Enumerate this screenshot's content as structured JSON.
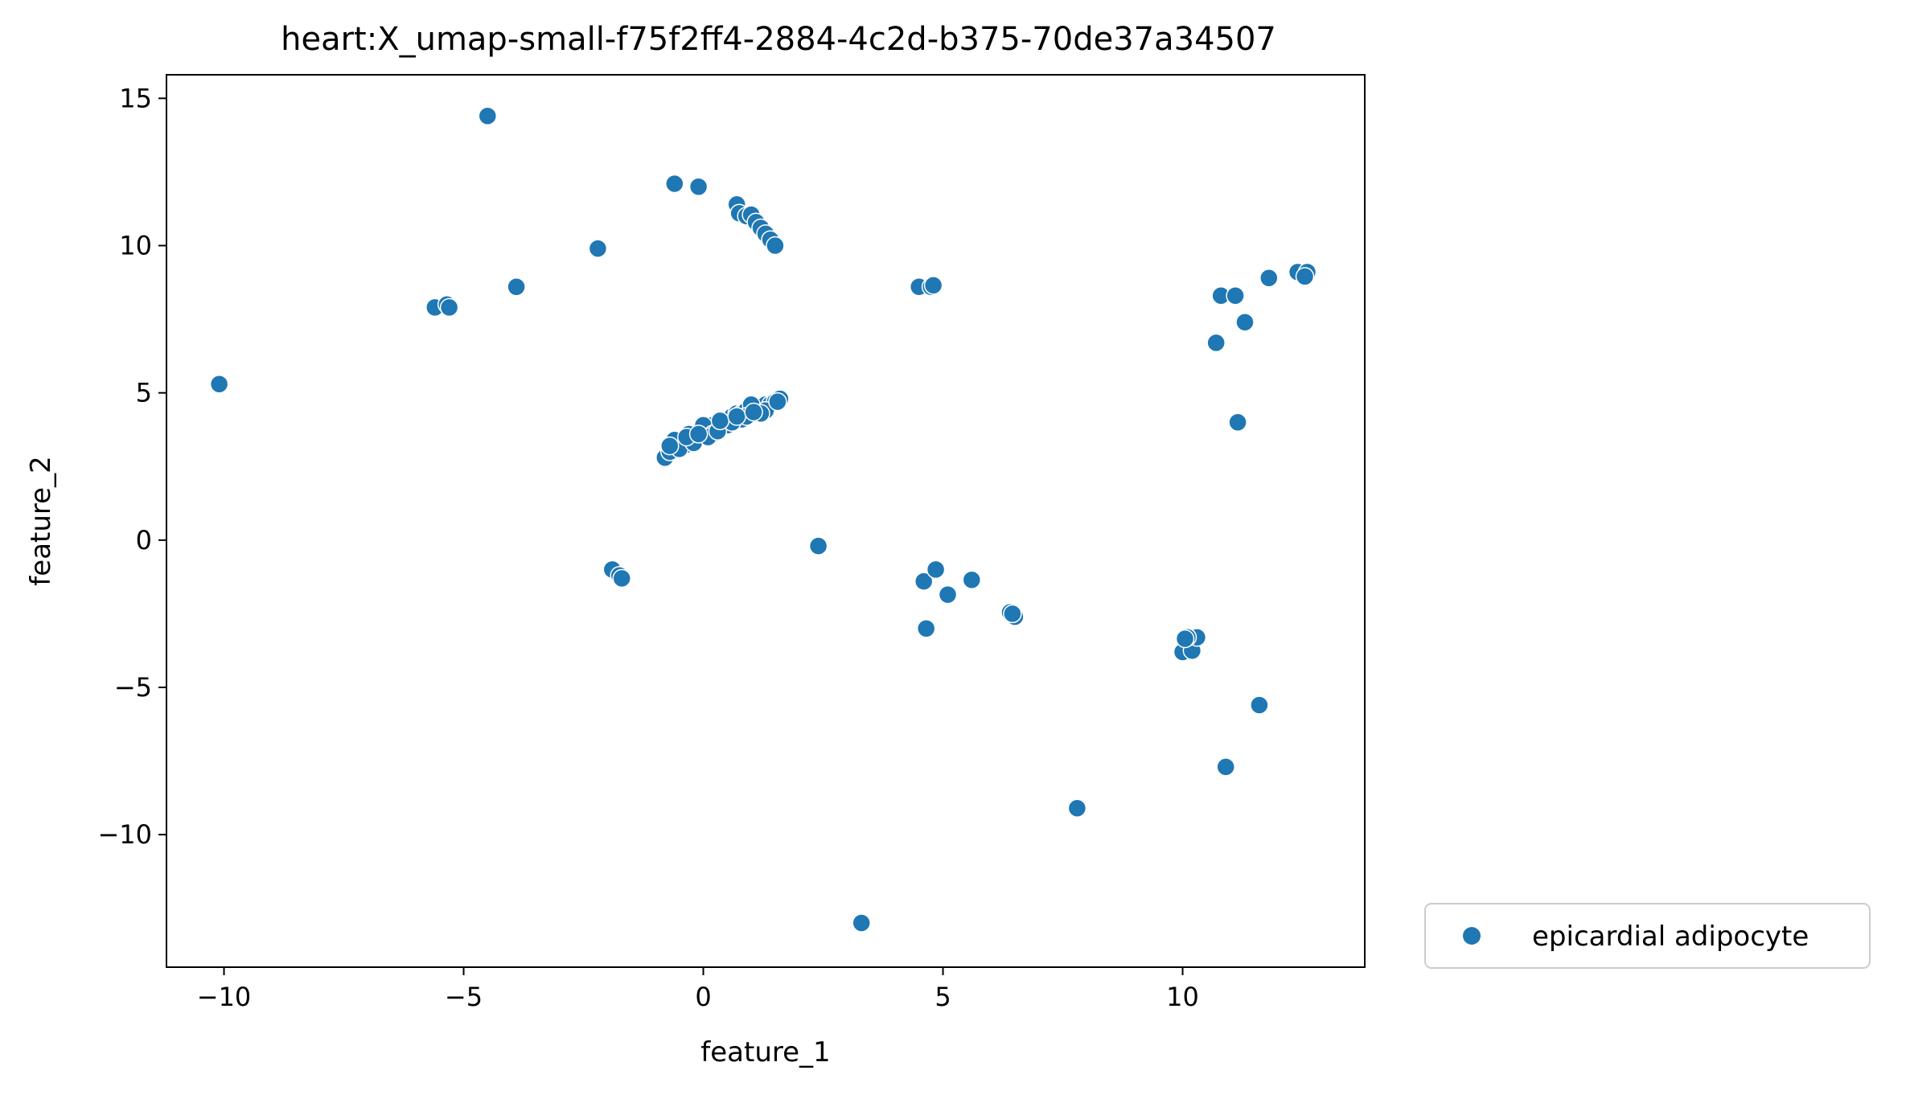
{
  "chart_data": {
    "type": "scatter",
    "title": "heart:X_umap-small-f75f2ff4-2884-4c2d-b375-70de37a34507",
    "xlabel": "feature_1",
    "ylabel": "feature_2",
    "xlim": [
      -11.2,
      13.8
    ],
    "ylim": [
      -14.5,
      15.8
    ],
    "xticks": [
      -10,
      -5,
      0,
      5,
      10
    ],
    "yticks": [
      -10,
      -5,
      0,
      5,
      10,
      15
    ],
    "xtick_labels": [
      "−10",
      "−5",
      "0",
      "5",
      "10"
    ],
    "ytick_labels": [
      "−10",
      "−5",
      "0",
      "5",
      "10",
      "15"
    ],
    "grid": false,
    "legend_position": "outside-bottom-right",
    "series": [
      {
        "name": "epicardial adipocyte",
        "color": "#1f77b4",
        "points": [
          [
            -10.1,
            5.3
          ],
          [
            -5.6,
            7.9
          ],
          [
            -5.35,
            8.0
          ],
          [
            -5.3,
            7.9
          ],
          [
            -4.5,
            14.4
          ],
          [
            -3.9,
            8.6
          ],
          [
            -2.2,
            9.9
          ],
          [
            -0.6,
            12.1
          ],
          [
            -0.1,
            12.0
          ],
          [
            0.7,
            11.4
          ],
          [
            0.75,
            11.1
          ],
          [
            0.9,
            11.0
          ],
          [
            1.0,
            11.05
          ],
          [
            1.1,
            10.8
          ],
          [
            1.2,
            10.6
          ],
          [
            1.3,
            10.4
          ],
          [
            1.4,
            10.2
          ],
          [
            1.5,
            10.0
          ],
          [
            4.5,
            8.6
          ],
          [
            4.75,
            8.6
          ],
          [
            4.8,
            8.65
          ],
          [
            10.7,
            6.7
          ],
          [
            10.8,
            8.3
          ],
          [
            11.1,
            8.3
          ],
          [
            11.3,
            7.4
          ],
          [
            11.8,
            8.9
          ],
          [
            12.4,
            9.1
          ],
          [
            12.6,
            9.1
          ],
          [
            12.55,
            8.95
          ],
          [
            11.15,
            4.0
          ],
          [
            -0.8,
            2.8
          ],
          [
            -0.7,
            3.0
          ],
          [
            -0.6,
            3.2
          ],
          [
            -0.5,
            3.3
          ],
          [
            -0.4,
            3.2
          ],
          [
            -0.3,
            3.4
          ],
          [
            -0.2,
            3.5
          ],
          [
            -0.1,
            3.6
          ],
          [
            0.0,
            3.7
          ],
          [
            0.1,
            3.8
          ],
          [
            0.2,
            3.9
          ],
          [
            0.3,
            3.8
          ],
          [
            0.4,
            4.0
          ],
          [
            0.5,
            4.1
          ],
          [
            0.6,
            4.2
          ],
          [
            0.7,
            4.3
          ],
          [
            0.8,
            4.3
          ],
          [
            0.9,
            4.4
          ],
          [
            1.0,
            4.4
          ],
          [
            1.1,
            4.5
          ],
          [
            1.2,
            4.5
          ],
          [
            1.3,
            4.6
          ],
          [
            1.4,
            4.6
          ],
          [
            1.5,
            4.7
          ],
          [
            1.6,
            4.8
          ],
          [
            -0.6,
            3.4
          ],
          [
            -0.3,
            3.6
          ],
          [
            0.0,
            3.9
          ],
          [
            0.2,
            3.6
          ],
          [
            0.5,
            3.9
          ],
          [
            0.8,
            4.1
          ],
          [
            1.0,
            4.6
          ],
          [
            1.3,
            4.4
          ],
          [
            -0.5,
            3.1
          ],
          [
            -0.2,
            3.3
          ],
          [
            0.1,
            3.5
          ],
          [
            0.3,
            3.7
          ],
          [
            0.6,
            4.0
          ],
          [
            0.9,
            4.2
          ],
          [
            1.2,
            4.3
          ],
          [
            -0.7,
            3.2
          ],
          [
            -0.35,
            3.5
          ],
          [
            0.35,
            4.05
          ],
          [
            0.7,
            4.2
          ],
          [
            1.05,
            4.35
          ],
          [
            1.55,
            4.7
          ],
          [
            -0.1,
            3.6
          ],
          [
            -1.9,
            -1.0
          ],
          [
            -1.75,
            -1.2
          ],
          [
            -1.7,
            -1.3
          ],
          [
            2.4,
            -0.2
          ],
          [
            4.6,
            -1.4
          ],
          [
            4.85,
            -1.0
          ],
          [
            4.65,
            -3.0
          ],
          [
            5.1,
            -1.85
          ],
          [
            5.6,
            -1.35
          ],
          [
            6.4,
            -2.45
          ],
          [
            6.5,
            -2.6
          ],
          [
            6.45,
            -2.5
          ],
          [
            10.0,
            -3.8
          ],
          [
            10.2,
            -3.75
          ],
          [
            10.3,
            -3.3
          ],
          [
            10.1,
            -3.3
          ],
          [
            10.05,
            -3.35
          ],
          [
            11.6,
            -5.6
          ],
          [
            10.9,
            -7.7
          ],
          [
            7.8,
            -9.1
          ],
          [
            3.3,
            -13.0
          ]
        ]
      }
    ]
  }
}
